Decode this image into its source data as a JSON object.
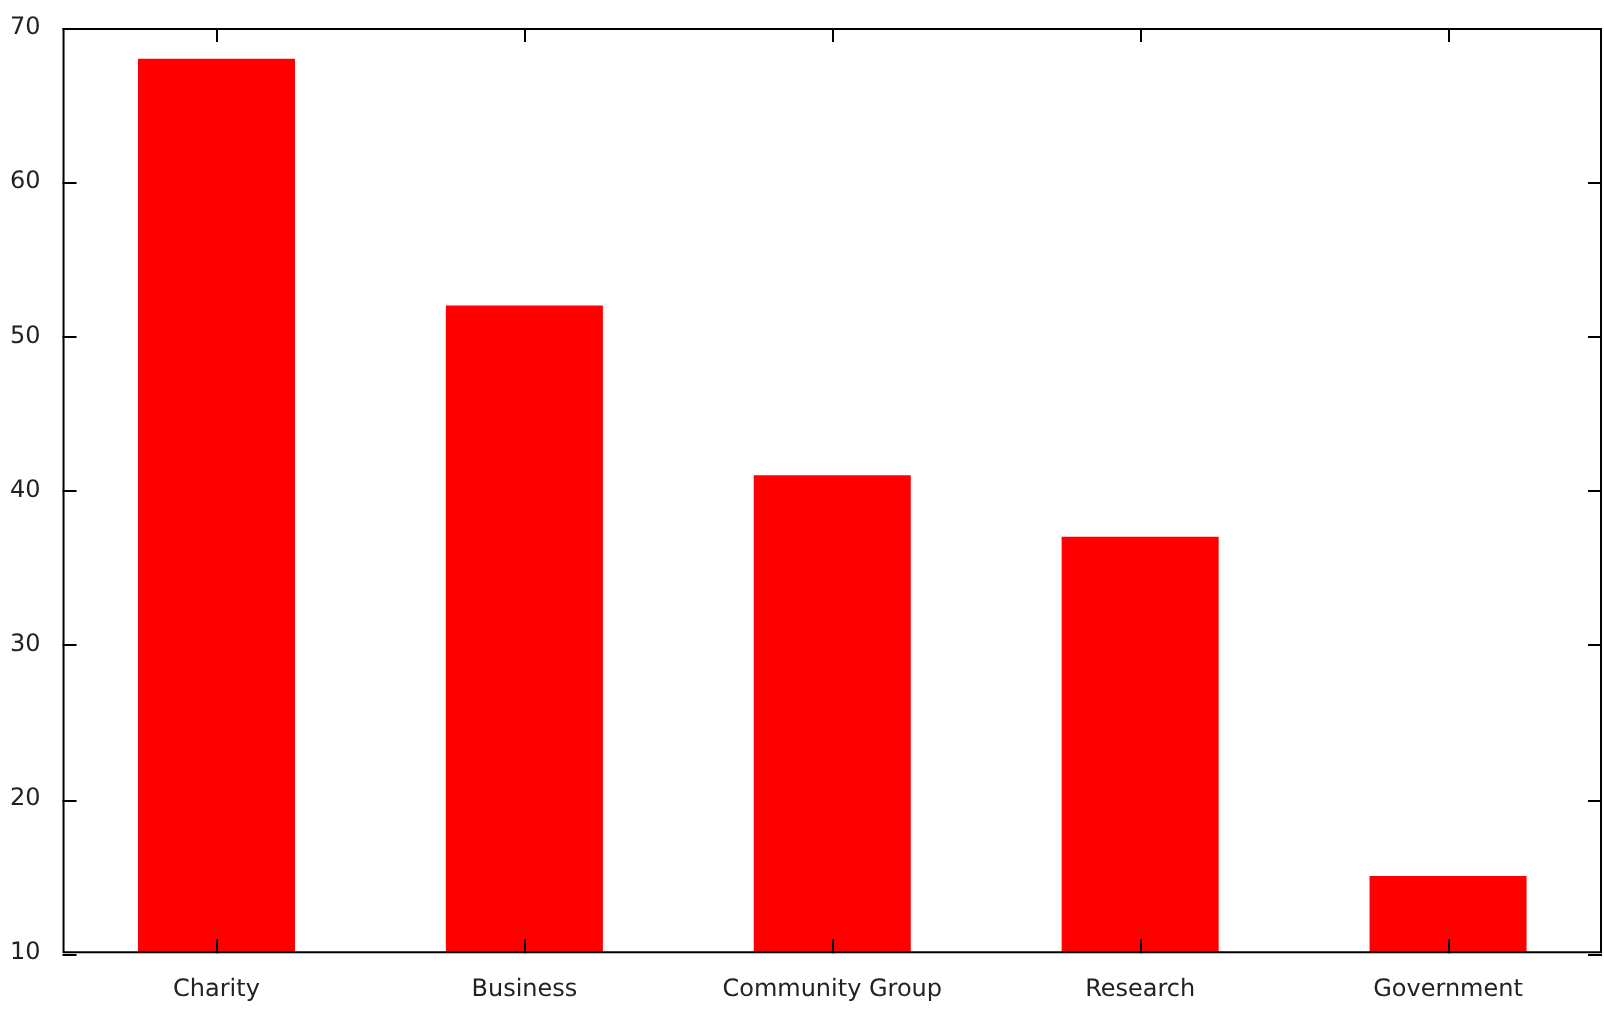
{
  "chart_data": {
    "type": "bar",
    "categories": [
      "Charity",
      "Business",
      "Community Group",
      "Research",
      "Government"
    ],
    "values": [
      68,
      52,
      41,
      37,
      15
    ],
    "color": "#ff0000",
    "ylim": [
      10,
      70
    ],
    "yticks": [
      10,
      20,
      30,
      40,
      50,
      60,
      70
    ]
  }
}
